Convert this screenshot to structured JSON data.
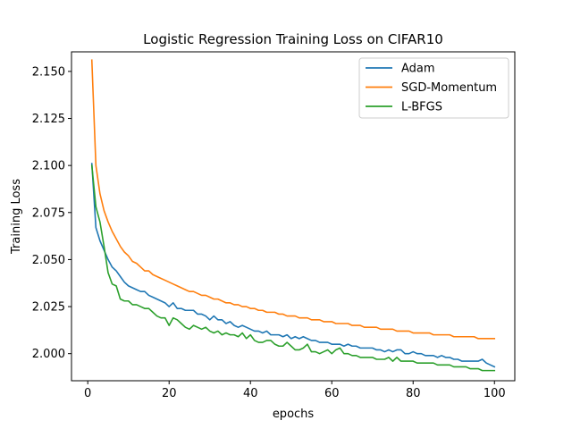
{
  "chart_data": {
    "type": "line",
    "title": "Logistic Regression Training Loss on CIFAR10",
    "xlabel": "epochs",
    "ylabel": "Training Loss",
    "xlim": [
      -4,
      105
    ],
    "ylim": [
      1.9856,
      2.1604
    ],
    "xticks": [
      0,
      20,
      40,
      60,
      80,
      100
    ],
    "yticks": [
      2.0,
      2.025,
      2.05,
      2.075,
      2.1,
      2.125,
      2.15
    ],
    "xtick_labels": [
      "0",
      "20",
      "40",
      "60",
      "80",
      "100"
    ],
    "ytick_labels": [
      "2.000",
      "2.025",
      "2.050",
      "2.075",
      "2.100",
      "2.125",
      "2.150"
    ],
    "grid": false,
    "legend_position": "top-right",
    "series": [
      {
        "name": "Adam",
        "color": "#1f77b4",
        "x": [
          1,
          2,
          3,
          4,
          5,
          6,
          7,
          8,
          9,
          10,
          11,
          12,
          13,
          14,
          15,
          16,
          17,
          18,
          19,
          20,
          21,
          22,
          23,
          24,
          25,
          26,
          27,
          28,
          29,
          30,
          31,
          32,
          33,
          34,
          35,
          36,
          37,
          38,
          39,
          40,
          41,
          42,
          43,
          44,
          45,
          46,
          47,
          48,
          49,
          50,
          51,
          52,
          53,
          54,
          55,
          56,
          57,
          58,
          59,
          60,
          61,
          62,
          63,
          64,
          65,
          66,
          67,
          68,
          69,
          70,
          71,
          72,
          73,
          74,
          75,
          76,
          77,
          78,
          79,
          80,
          81,
          82,
          83,
          84,
          85,
          86,
          87,
          88,
          89,
          90,
          91,
          92,
          93,
          94,
          95,
          96,
          97,
          98,
          99,
          100
        ],
        "values": [
          2.101,
          2.067,
          2.06,
          2.055,
          2.05,
          2.046,
          2.044,
          2.041,
          2.038,
          2.036,
          2.035,
          2.034,
          2.033,
          2.033,
          2.031,
          2.03,
          2.029,
          2.028,
          2.027,
          2.025,
          2.027,
          2.024,
          2.024,
          2.023,
          2.023,
          2.023,
          2.021,
          2.021,
          2.02,
          2.018,
          2.02,
          2.018,
          2.018,
          2.016,
          2.017,
          2.015,
          2.014,
          2.015,
          2.014,
          2.013,
          2.012,
          2.012,
          2.011,
          2.012,
          2.01,
          2.01,
          2.01,
          2.009,
          2.01,
          2.008,
          2.009,
          2.008,
          2.009,
          2.008,
          2.007,
          2.007,
          2.006,
          2.006,
          2.006,
          2.005,
          2.005,
          2.005,
          2.004,
          2.005,
          2.004,
          2.004,
          2.003,
          2.003,
          2.003,
          2.003,
          2.002,
          2.002,
          2.001,
          2.002,
          2.001,
          2.002,
          2.002,
          2.0,
          2.0,
          2.001,
          2.0,
          2.0,
          1.999,
          1.999,
          1.999,
          1.998,
          1.999,
          1.998,
          1.998,
          1.997,
          1.997,
          1.996,
          1.996,
          1.996,
          1.996,
          1.996,
          1.997,
          1.995,
          1.994,
          1.993
        ]
      },
      {
        "name": "SGD-Momentum",
        "color": "#ff7f0e",
        "x": [
          1,
          2,
          3,
          4,
          5,
          6,
          7,
          8,
          9,
          10,
          11,
          12,
          13,
          14,
          15,
          16,
          17,
          18,
          19,
          20,
          21,
          22,
          23,
          24,
          25,
          26,
          27,
          28,
          29,
          30,
          31,
          32,
          33,
          34,
          35,
          36,
          37,
          38,
          39,
          40,
          41,
          42,
          43,
          44,
          45,
          46,
          47,
          48,
          49,
          50,
          51,
          52,
          53,
          54,
          55,
          56,
          57,
          58,
          59,
          60,
          61,
          62,
          63,
          64,
          65,
          66,
          67,
          68,
          69,
          70,
          71,
          72,
          73,
          74,
          75,
          76,
          77,
          78,
          79,
          80,
          81,
          82,
          83,
          84,
          85,
          86,
          87,
          88,
          89,
          90,
          91,
          92,
          93,
          94,
          95,
          96,
          97,
          98,
          99,
          100
        ],
        "values": [
          2.156,
          2.1,
          2.085,
          2.076,
          2.07,
          2.065,
          2.061,
          2.057,
          2.054,
          2.052,
          2.049,
          2.048,
          2.046,
          2.044,
          2.044,
          2.042,
          2.041,
          2.04,
          2.039,
          2.038,
          2.037,
          2.036,
          2.035,
          2.034,
          2.033,
          2.033,
          2.032,
          2.031,
          2.031,
          2.03,
          2.029,
          2.029,
          2.028,
          2.027,
          2.027,
          2.026,
          2.026,
          2.025,
          2.025,
          2.024,
          2.024,
          2.023,
          2.023,
          2.022,
          2.022,
          2.022,
          2.021,
          2.021,
          2.02,
          2.02,
          2.02,
          2.019,
          2.019,
          2.019,
          2.018,
          2.018,
          2.018,
          2.017,
          2.017,
          2.017,
          2.016,
          2.016,
          2.016,
          2.016,
          2.015,
          2.015,
          2.015,
          2.014,
          2.014,
          2.014,
          2.014,
          2.013,
          2.013,
          2.013,
          2.013,
          2.012,
          2.012,
          2.012,
          2.012,
          2.011,
          2.011,
          2.011,
          2.011,
          2.011,
          2.01,
          2.01,
          2.01,
          2.01,
          2.01,
          2.009,
          2.009,
          2.009,
          2.009,
          2.009,
          2.009,
          2.008,
          2.008,
          2.008,
          2.008,
          2.008
        ]
      },
      {
        "name": "L-BFGS",
        "color": "#2ca02c",
        "x": [
          1,
          2,
          3,
          4,
          5,
          6,
          7,
          8,
          9,
          10,
          11,
          12,
          13,
          14,
          15,
          16,
          17,
          18,
          19,
          20,
          21,
          22,
          23,
          24,
          25,
          26,
          27,
          28,
          29,
          30,
          31,
          32,
          33,
          34,
          35,
          36,
          37,
          38,
          39,
          40,
          41,
          42,
          43,
          44,
          45,
          46,
          47,
          48,
          49,
          50,
          51,
          52,
          53,
          54,
          55,
          56,
          57,
          58,
          59,
          60,
          61,
          62,
          63,
          64,
          65,
          66,
          67,
          68,
          69,
          70,
          71,
          72,
          73,
          74,
          75,
          76,
          77,
          78,
          79,
          80,
          81,
          82,
          83,
          84,
          85,
          86,
          87,
          88,
          89,
          90,
          91,
          92,
          93,
          94,
          95,
          96,
          97,
          98,
          99,
          100
        ],
        "values": [
          2.1,
          2.078,
          2.07,
          2.057,
          2.043,
          2.037,
          2.036,
          2.029,
          2.028,
          2.028,
          2.026,
          2.026,
          2.025,
          2.024,
          2.024,
          2.022,
          2.02,
          2.019,
          2.019,
          2.015,
          2.019,
          2.018,
          2.016,
          2.014,
          2.013,
          2.015,
          2.014,
          2.013,
          2.014,
          2.012,
          2.011,
          2.012,
          2.01,
          2.011,
          2.01,
          2.01,
          2.009,
          2.011,
          2.008,
          2.01,
          2.007,
          2.006,
          2.006,
          2.007,
          2.007,
          2.005,
          2.004,
          2.004,
          2.006,
          2.004,
          2.002,
          2.002,
          2.003,
          2.005,
          2.001,
          2.001,
          2.0,
          2.001,
          2.002,
          2.0,
          2.002,
          2.003,
          2.0,
          2.0,
          1.999,
          1.999,
          1.998,
          1.998,
          1.998,
          1.998,
          1.997,
          1.997,
          1.997,
          1.998,
          1.996,
          1.998,
          1.996,
          1.996,
          1.996,
          1.996,
          1.995,
          1.995,
          1.995,
          1.995,
          1.995,
          1.994,
          1.994,
          1.994,
          1.994,
          1.993,
          1.993,
          1.993,
          1.993,
          1.992,
          1.992,
          1.992,
          1.991,
          1.991,
          1.991,
          1.991
        ]
      }
    ]
  }
}
